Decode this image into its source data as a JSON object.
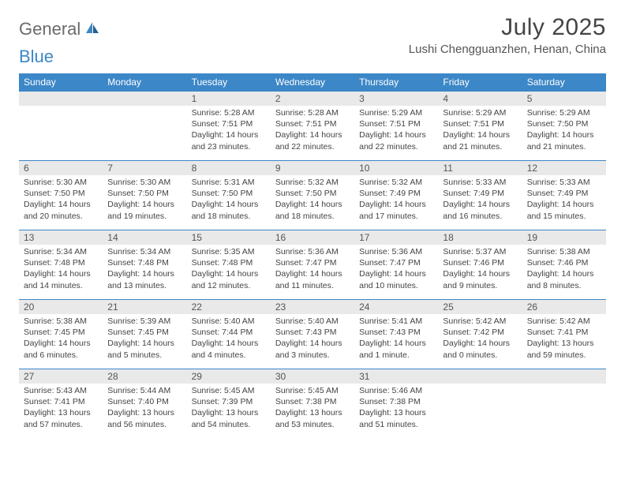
{
  "logo": {
    "text1": "General",
    "text2": "Blue"
  },
  "title": "July 2025",
  "location": "Lushi Chengguanzhen, Henan, China",
  "colors": {
    "header_bg": "#3c87c7",
    "header_text": "#ffffff",
    "daynum_bg": "#e9e9e9",
    "border": "#3c87c7",
    "body_text": "#444444"
  },
  "day_headers": [
    "Sunday",
    "Monday",
    "Tuesday",
    "Wednesday",
    "Thursday",
    "Friday",
    "Saturday"
  ],
  "weeks": [
    [
      {
        "n": "",
        "sr": "",
        "ss": "",
        "dl": ""
      },
      {
        "n": "",
        "sr": "",
        "ss": "",
        "dl": ""
      },
      {
        "n": "1",
        "sr": "5:28 AM",
        "ss": "7:51 PM",
        "dl": "14 hours and 23 minutes."
      },
      {
        "n": "2",
        "sr": "5:28 AM",
        "ss": "7:51 PM",
        "dl": "14 hours and 22 minutes."
      },
      {
        "n": "3",
        "sr": "5:29 AM",
        "ss": "7:51 PM",
        "dl": "14 hours and 22 minutes."
      },
      {
        "n": "4",
        "sr": "5:29 AM",
        "ss": "7:51 PM",
        "dl": "14 hours and 21 minutes."
      },
      {
        "n": "5",
        "sr": "5:29 AM",
        "ss": "7:50 PM",
        "dl": "14 hours and 21 minutes."
      }
    ],
    [
      {
        "n": "6",
        "sr": "5:30 AM",
        "ss": "7:50 PM",
        "dl": "14 hours and 20 minutes."
      },
      {
        "n": "7",
        "sr": "5:30 AM",
        "ss": "7:50 PM",
        "dl": "14 hours and 19 minutes."
      },
      {
        "n": "8",
        "sr": "5:31 AM",
        "ss": "7:50 PM",
        "dl": "14 hours and 18 minutes."
      },
      {
        "n": "9",
        "sr": "5:32 AM",
        "ss": "7:50 PM",
        "dl": "14 hours and 18 minutes."
      },
      {
        "n": "10",
        "sr": "5:32 AM",
        "ss": "7:49 PM",
        "dl": "14 hours and 17 minutes."
      },
      {
        "n": "11",
        "sr": "5:33 AM",
        "ss": "7:49 PM",
        "dl": "14 hours and 16 minutes."
      },
      {
        "n": "12",
        "sr": "5:33 AM",
        "ss": "7:49 PM",
        "dl": "14 hours and 15 minutes."
      }
    ],
    [
      {
        "n": "13",
        "sr": "5:34 AM",
        "ss": "7:48 PM",
        "dl": "14 hours and 14 minutes."
      },
      {
        "n": "14",
        "sr": "5:34 AM",
        "ss": "7:48 PM",
        "dl": "14 hours and 13 minutes."
      },
      {
        "n": "15",
        "sr": "5:35 AM",
        "ss": "7:48 PM",
        "dl": "14 hours and 12 minutes."
      },
      {
        "n": "16",
        "sr": "5:36 AM",
        "ss": "7:47 PM",
        "dl": "14 hours and 11 minutes."
      },
      {
        "n": "17",
        "sr": "5:36 AM",
        "ss": "7:47 PM",
        "dl": "14 hours and 10 minutes."
      },
      {
        "n": "18",
        "sr": "5:37 AM",
        "ss": "7:46 PM",
        "dl": "14 hours and 9 minutes."
      },
      {
        "n": "19",
        "sr": "5:38 AM",
        "ss": "7:46 PM",
        "dl": "14 hours and 8 minutes."
      }
    ],
    [
      {
        "n": "20",
        "sr": "5:38 AM",
        "ss": "7:45 PM",
        "dl": "14 hours and 6 minutes."
      },
      {
        "n": "21",
        "sr": "5:39 AM",
        "ss": "7:45 PM",
        "dl": "14 hours and 5 minutes."
      },
      {
        "n": "22",
        "sr": "5:40 AM",
        "ss": "7:44 PM",
        "dl": "14 hours and 4 minutes."
      },
      {
        "n": "23",
        "sr": "5:40 AM",
        "ss": "7:43 PM",
        "dl": "14 hours and 3 minutes."
      },
      {
        "n": "24",
        "sr": "5:41 AM",
        "ss": "7:43 PM",
        "dl": "14 hours and 1 minute."
      },
      {
        "n": "25",
        "sr": "5:42 AM",
        "ss": "7:42 PM",
        "dl": "14 hours and 0 minutes."
      },
      {
        "n": "26",
        "sr": "5:42 AM",
        "ss": "7:41 PM",
        "dl": "13 hours and 59 minutes."
      }
    ],
    [
      {
        "n": "27",
        "sr": "5:43 AM",
        "ss": "7:41 PM",
        "dl": "13 hours and 57 minutes."
      },
      {
        "n": "28",
        "sr": "5:44 AM",
        "ss": "7:40 PM",
        "dl": "13 hours and 56 minutes."
      },
      {
        "n": "29",
        "sr": "5:45 AM",
        "ss": "7:39 PM",
        "dl": "13 hours and 54 minutes."
      },
      {
        "n": "30",
        "sr": "5:45 AM",
        "ss": "7:38 PM",
        "dl": "13 hours and 53 minutes."
      },
      {
        "n": "31",
        "sr": "5:46 AM",
        "ss": "7:38 PM",
        "dl": "13 hours and 51 minutes."
      },
      {
        "n": "",
        "sr": "",
        "ss": "",
        "dl": ""
      },
      {
        "n": "",
        "sr": "",
        "ss": "",
        "dl": ""
      }
    ]
  ],
  "labels": {
    "sunrise": "Sunrise:",
    "sunset": "Sunset:",
    "daylight": "Daylight:"
  }
}
